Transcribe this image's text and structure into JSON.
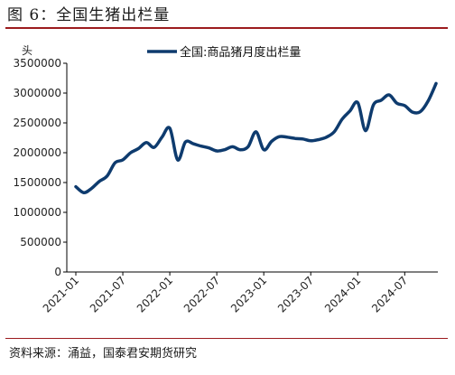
{
  "figure_title": "图 6：全国生猪出栏量",
  "source_text": "资料来源：涌益，国泰君安期货研究",
  "colors": {
    "line": "#0e3b6e",
    "rule": "#9c1b1e",
    "axis": "#000000"
  },
  "chart_data": {
    "type": "line",
    "ylabel": "头",
    "ylim": [
      0,
      3500000
    ],
    "yticks": [
      "0",
      "500000",
      "1000000",
      "1500000",
      "2000000",
      "2500000",
      "3000000",
      "3500000"
    ],
    "xticks": [
      "2021-01",
      "2021-07",
      "2022-01",
      "2022-07",
      "2023-01",
      "2023-07",
      "2024-01",
      "2024-07"
    ],
    "x_range": [
      0,
      46
    ],
    "legend": {
      "position": "top-center",
      "label": "全国:商品猪月度出栏量"
    },
    "series": [
      {
        "name": "全国:商品猪月度出栏量",
        "x": [
          0,
          1,
          2,
          3,
          4,
          5,
          6,
          7,
          8,
          9,
          10,
          11,
          12,
          13,
          14,
          15,
          16,
          17,
          18,
          19,
          20,
          21,
          22,
          23,
          24,
          25,
          26,
          27,
          28,
          29,
          30,
          31,
          32,
          33,
          34,
          35,
          36,
          37,
          38,
          39,
          40,
          41,
          42,
          43,
          44,
          45,
          46
        ],
        "values": [
          1430000,
          1330000,
          1400000,
          1520000,
          1610000,
          1830000,
          1880000,
          2000000,
          2070000,
          2170000,
          2090000,
          2260000,
          2410000,
          1880000,
          2180000,
          2150000,
          2110000,
          2080000,
          2030000,
          2050000,
          2100000,
          2050000,
          2100000,
          2350000,
          2050000,
          2190000,
          2270000,
          2260000,
          2240000,
          2230000,
          2200000,
          2220000,
          2260000,
          2350000,
          2560000,
          2700000,
          2840000,
          2370000,
          2800000,
          2880000,
          2970000,
          2830000,
          2790000,
          2680000,
          2690000,
          2870000,
          3160000
        ]
      }
    ]
  }
}
